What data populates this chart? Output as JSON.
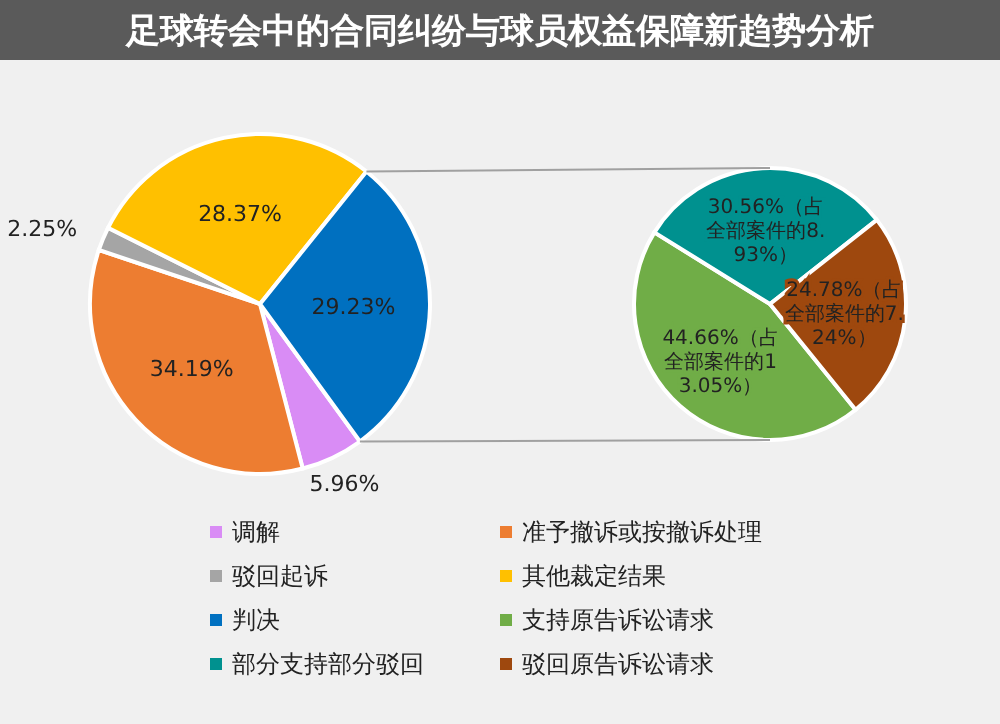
{
  "chart_data": [
    {
      "type": "pie",
      "title": "足球转会中的合同纠纷与球员权益保障新趋势分析",
      "categories": [
        "调解",
        "准予撤诉或按撤诉处理",
        "驳回起诉",
        "其他裁定结果",
        "判决"
      ],
      "values": [
        5.96,
        34.19,
        2.25,
        28.37,
        29.23
      ],
      "colors": [
        "#d98cf5",
        "#ed7d31",
        "#a5a5a5",
        "#ffc000",
        "#0070c0"
      ],
      "value_labels": [
        "5.96%",
        "34.19%",
        "2.25%",
        "28.37%",
        "29.23%"
      ],
      "legend": "bottom"
    },
    {
      "type": "pie",
      "categories": [
        "支持原告诉讼请求",
        "部分支持部分驳回",
        "驳回原告诉讼请求"
      ],
      "values": [
        44.66,
        30.56,
        24.78
      ],
      "colors": [
        "#70ad47",
        "#00918f",
        "#9e480e"
      ],
      "value_labels": [
        "44.66%（占全部案件的13.05%）",
        "30.56%（占全部案件的8.93%）",
        "24.78%（占全部案件的7.24%）"
      ],
      "legend": "bottom"
    }
  ]
}
